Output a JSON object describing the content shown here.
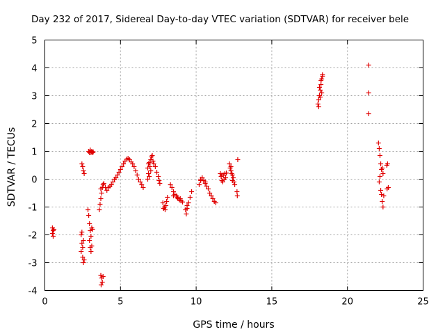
{
  "chart_data": {
    "type": "scatter",
    "title": "Day 232 of 2017, Sidereal Day-to-day VTEC variation (SDTVAR) for receiver bele",
    "xlabel": "GPS time / hours",
    "ylabel": "SDTVAR / TECUs",
    "xlim": [
      0,
      25
    ],
    "ylim": [
      -4,
      5
    ],
    "x_ticks": [
      0,
      5,
      10,
      15,
      20,
      25
    ],
    "y_ticks": [
      -4,
      -3,
      -2,
      -1,
      0,
      1,
      2,
      3,
      4,
      5
    ],
    "grid": true,
    "marker": "+",
    "color": "#e00000",
    "series": [
      {
        "name": "SDTVAR",
        "points": [
          [
            0.5,
            -1.75
          ],
          [
            0.55,
            -1.85
          ],
          [
            0.5,
            -1.95
          ],
          [
            0.55,
            -2.05
          ],
          [
            0.6,
            -1.8
          ],
          [
            2.4,
            -2.0
          ],
          [
            2.45,
            -2.3
          ],
          [
            2.4,
            -2.6
          ],
          [
            2.5,
            -2.8
          ],
          [
            2.55,
            -3.0
          ],
          [
            2.6,
            -2.9
          ],
          [
            2.45,
            -1.9
          ],
          [
            2.55,
            -2.2
          ],
          [
            2.5,
            -2.45
          ],
          [
            2.45,
            0.55
          ],
          [
            2.5,
            0.45
          ],
          [
            2.55,
            0.3
          ],
          [
            2.6,
            0.2
          ],
          [
            2.85,
            -1.1
          ],
          [
            2.9,
            -1.3
          ],
          [
            2.95,
            -1.6
          ],
          [
            3.0,
            -1.85
          ],
          [
            3.05,
            -2.05
          ],
          [
            3.1,
            -1.75
          ],
          [
            2.95,
            -2.2
          ],
          [
            3.0,
            -2.45
          ],
          [
            3.05,
            -2.6
          ],
          [
            3.1,
            -2.4
          ],
          [
            3.15,
            -1.8
          ],
          [
            2.9,
            1.0
          ],
          [
            2.95,
            0.95
          ],
          [
            3.0,
            1.05
          ],
          [
            3.05,
            0.95
          ],
          [
            3.1,
            1.0
          ],
          [
            3.15,
            0.95
          ],
          [
            3.2,
            0.98
          ],
          [
            3.7,
            -3.45
          ],
          [
            3.75,
            -3.55
          ],
          [
            3.8,
            -3.7
          ],
          [
            3.72,
            -3.8
          ],
          [
            3.85,
            -3.5
          ],
          [
            3.6,
            -1.1
          ],
          [
            3.65,
            -0.9
          ],
          [
            3.7,
            -0.7
          ],
          [
            3.75,
            -0.5
          ],
          [
            3.8,
            -0.3
          ],
          [
            3.85,
            -0.2
          ],
          [
            3.7,
            -0.35
          ],
          [
            3.9,
            -0.15
          ],
          [
            4.0,
            -0.3
          ],
          [
            4.1,
            -0.4
          ],
          [
            4.2,
            -0.3
          ],
          [
            4.3,
            -0.25
          ],
          [
            4.4,
            -0.2
          ],
          [
            4.5,
            -0.1
          ],
          [
            4.6,
            0.0
          ],
          [
            4.7,
            0.05
          ],
          [
            4.8,
            0.15
          ],
          [
            4.9,
            0.25
          ],
          [
            5.0,
            0.35
          ],
          [
            5.1,
            0.45
          ],
          [
            5.2,
            0.55
          ],
          [
            5.3,
            0.65
          ],
          [
            5.4,
            0.72
          ],
          [
            5.5,
            0.75
          ],
          [
            5.6,
            0.7
          ],
          [
            5.7,
            0.62
          ],
          [
            5.8,
            0.55
          ],
          [
            5.9,
            0.45
          ],
          [
            6.0,
            0.3
          ],
          [
            6.1,
            0.15
          ],
          [
            6.2,
            0.0
          ],
          [
            6.3,
            -0.1
          ],
          [
            6.4,
            -0.2
          ],
          [
            6.5,
            -0.3
          ],
          [
            6.8,
            0.4
          ],
          [
            6.85,
            0.55
          ],
          [
            6.9,
            0.6
          ],
          [
            6.95,
            0.45
          ],
          [
            7.0,
            0.7
          ],
          [
            7.05,
            0.8
          ],
          [
            7.1,
            0.85
          ],
          [
            7.15,
            0.65
          ],
          [
            7.2,
            0.55
          ],
          [
            7.3,
            0.45
          ],
          [
            7.4,
            0.25
          ],
          [
            7.5,
            0.1
          ],
          [
            7.55,
            -0.05
          ],
          [
            7.6,
            -0.15
          ],
          [
            6.85,
            0.2
          ],
          [
            6.9,
            0.1
          ],
          [
            7.0,
            0.3
          ],
          [
            6.8,
            0.0
          ],
          [
            7.8,
            -0.85
          ],
          [
            7.9,
            -1.0
          ],
          [
            7.95,
            -1.1
          ],
          [
            8.0,
            -0.95
          ],
          [
            8.05,
            -0.8
          ],
          [
            8.1,
            -0.65
          ],
          [
            7.85,
            -1.05
          ],
          [
            8.3,
            -0.2
          ],
          [
            8.4,
            -0.3
          ],
          [
            8.5,
            -0.45
          ],
          [
            8.6,
            -0.55
          ],
          [
            8.7,
            -0.6
          ],
          [
            8.8,
            -0.7
          ],
          [
            8.9,
            -0.75
          ],
          [
            9.0,
            -0.78
          ],
          [
            9.1,
            -0.82
          ],
          [
            8.5,
            -0.6
          ],
          [
            8.75,
            -0.65
          ],
          [
            8.95,
            -0.7
          ],
          [
            9.3,
            -1.1
          ],
          [
            9.35,
            -1.25
          ],
          [
            9.4,
            -1.05
          ],
          [
            9.5,
            -0.85
          ],
          [
            9.6,
            -0.65
          ],
          [
            9.7,
            -0.45
          ],
          [
            9.4,
            -0.95
          ],
          [
            10.2,
            -0.2
          ],
          [
            10.3,
            -0.05
          ],
          [
            10.4,
            0.05
          ],
          [
            10.5,
            -0.05
          ],
          [
            10.6,
            -0.15
          ],
          [
            10.7,
            -0.25
          ],
          [
            10.8,
            -0.35
          ],
          [
            10.9,
            -0.5
          ],
          [
            11.0,
            -0.6
          ],
          [
            11.1,
            -0.7
          ],
          [
            11.2,
            -0.8
          ],
          [
            11.3,
            -0.85
          ],
          [
            10.3,
            0.0
          ],
          [
            10.6,
            -0.1
          ],
          [
            11.6,
            0.2
          ],
          [
            11.65,
            0.1
          ],
          [
            11.7,
            -0.05
          ],
          [
            11.75,
            -0.1
          ],
          [
            11.8,
            0.15
          ],
          [
            11.85,
            0.0
          ],
          [
            11.9,
            0.2
          ],
          [
            11.95,
            0.05
          ],
          [
            12.0,
            0.22
          ],
          [
            11.7,
            0.15
          ],
          [
            12.2,
            0.55
          ],
          [
            12.25,
            0.4
          ],
          [
            12.3,
            0.3
          ],
          [
            12.35,
            0.2
          ],
          [
            12.4,
            0.15
          ],
          [
            12.45,
            0.05
          ],
          [
            12.5,
            -0.1
          ],
          [
            12.55,
            -0.2
          ],
          [
            12.4,
            -0.05
          ],
          [
            12.3,
            0.45
          ],
          [
            12.75,
            0.7
          ],
          [
            12.7,
            -0.45
          ],
          [
            12.72,
            -0.6
          ],
          [
            18.05,
            2.7
          ],
          [
            18.1,
            2.85
          ],
          [
            18.15,
            3.0
          ],
          [
            18.2,
            3.2
          ],
          [
            18.25,
            3.4
          ],
          [
            18.3,
            3.6
          ],
          [
            18.35,
            3.75
          ],
          [
            18.1,
            2.6
          ],
          [
            18.2,
            2.95
          ],
          [
            18.3,
            3.1
          ],
          [
            18.15,
            3.3
          ],
          [
            18.25,
            3.55
          ],
          [
            18.35,
            3.7
          ],
          [
            21.4,
            4.1
          ],
          [
            21.4,
            3.1
          ],
          [
            21.4,
            2.35
          ],
          [
            22.05,
            1.3
          ],
          [
            22.1,
            1.1
          ],
          [
            22.15,
            0.85
          ],
          [
            22.2,
            0.55
          ],
          [
            22.25,
            0.35
          ],
          [
            22.3,
            0.4
          ],
          [
            22.35,
            0.2
          ],
          [
            22.2,
            -0.4
          ],
          [
            22.25,
            -0.55
          ],
          [
            22.3,
            -0.8
          ],
          [
            22.35,
            -1.0
          ],
          [
            22.4,
            -0.6
          ],
          [
            22.15,
            0.1
          ],
          [
            22.1,
            -0.1
          ],
          [
            22.6,
            0.5
          ],
          [
            22.65,
            0.55
          ],
          [
            22.7,
            -0.3
          ],
          [
            22.62,
            -0.35
          ]
        ]
      }
    ]
  }
}
